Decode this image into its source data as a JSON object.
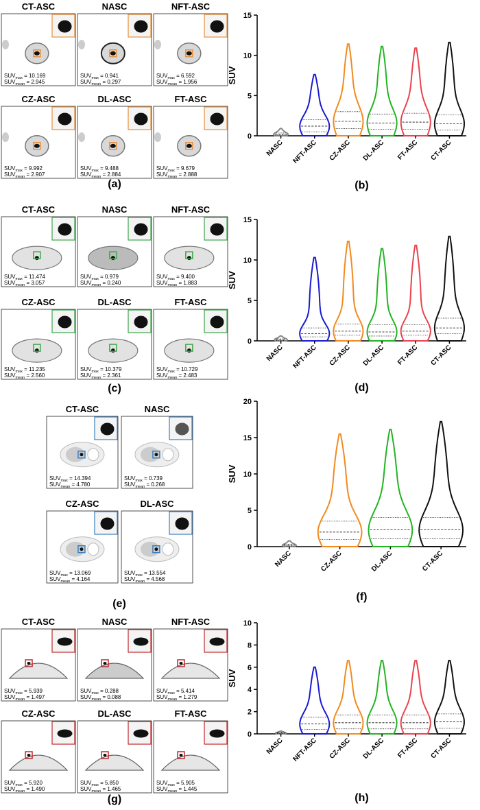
{
  "labels": {
    "suv": "SUV",
    "max": "max",
    "mean": "mean",
    "equals": " = "
  },
  "image_groups": [
    {
      "label": "(a)",
      "panels": [
        {
          "title": "CT-ASC",
          "suv_max": "10.169",
          "suv_mean": "2.945"
        },
        {
          "title": "NASC",
          "suv_max": "0.941",
          "suv_mean": "0.297"
        },
        {
          "title": "NFT-ASC",
          "suv_max": "6.592",
          "suv_mean": "1.956"
        },
        {
          "title": "CZ-ASC",
          "suv_max": "9.992",
          "suv_mean": "2.907"
        },
        {
          "title": "DL-ASC",
          "suv_max": "9.488",
          "suv_mean": "2.884"
        },
        {
          "title": "FT-ASC",
          "suv_max": "9.679",
          "suv_mean": "2.888"
        }
      ]
    },
    {
      "label": "(c)",
      "panels": [
        {
          "title": "CT-ASC",
          "suv_max": "11.474",
          "suv_mean": "3.057"
        },
        {
          "title": "NASC",
          "suv_max": "0.979",
          "suv_mean": "0.240"
        },
        {
          "title": "NFT-ASC",
          "suv_max": "9.400",
          "suv_mean": "1.883"
        },
        {
          "title": "CZ-ASC",
          "suv_max": "11.235",
          "suv_mean": "2.560"
        },
        {
          "title": "DL-ASC",
          "suv_max": "10.379",
          "suv_mean": "2.361"
        },
        {
          "title": "FT-ASC",
          "suv_max": "10.729",
          "suv_mean": "2.483"
        }
      ]
    },
    {
      "label": "(e)",
      "panels": [
        {
          "title": "CT-ASC",
          "suv_max": "14.394",
          "suv_mean": "4.780"
        },
        {
          "title": "NASC",
          "suv_max": "0.739",
          "suv_mean": "0.268"
        },
        {
          "title": "CZ-ASC",
          "suv_max": "13.069",
          "suv_mean": "4.164"
        },
        {
          "title": "DL-ASC",
          "suv_max": "13.554",
          "suv_mean": "4.568"
        }
      ]
    },
    {
      "label": "(g)",
      "panels": [
        {
          "title": "CT-ASC",
          "suv_max": "5.939",
          "suv_mean": "1.497"
        },
        {
          "title": "NASC",
          "suv_max": "0.288",
          "suv_mean": "0.088"
        },
        {
          "title": "NFT-ASC",
          "suv_max": "5.414",
          "suv_mean": "1.279"
        },
        {
          "title": "CZ-ASC",
          "suv_max": "5.920",
          "suv_mean": "1.490"
        },
        {
          "title": "DL-ASC",
          "suv_max": "5.850",
          "suv_mean": "1.465"
        },
        {
          "title": "FT-ASC",
          "suv_max": "5.905",
          "suv_mean": "1.445"
        }
      ]
    }
  ],
  "chart_data": [
    {
      "type": "violin",
      "label": "(b)",
      "ylabel": "SUV",
      "categories": [
        "NASC",
        "NFT-ASC",
        "CZ-ASC",
        "DL-ASC",
        "FT-ASC",
        "CT-ASC"
      ],
      "colors": [
        "#888888",
        "#1a1ad0",
        "#f28a1e",
        "#22b422",
        "#e8434e",
        "#111111"
      ],
      "max": [
        0.9,
        7.6,
        11.4,
        11.1,
        10.9,
        11.6
      ],
      "q3": [
        0.35,
        2.0,
        3.0,
        2.7,
        2.8,
        2.6
      ],
      "median": [
        0.2,
        1.2,
        1.8,
        1.6,
        1.7,
        1.5
      ],
      "q1": [
        0.1,
        0.5,
        0.9,
        0.8,
        0.8,
        0.7
      ],
      "ylim": [
        0,
        15
      ],
      "yticks": [
        0,
        5,
        10,
        15
      ]
    },
    {
      "type": "violin",
      "label": "(d)",
      "ylabel": "SUV",
      "categories": [
        "NASC",
        "NFT-ASC",
        "CZ-ASC",
        "DL-ASC",
        "FT-ASC",
        "CT-ASC"
      ],
      "colors": [
        "#888888",
        "#1a1ad0",
        "#f28a1e",
        "#22b422",
        "#e8434e",
        "#111111"
      ],
      "max": [
        0.6,
        10.3,
        12.3,
        11.4,
        11.8,
        12.9
      ],
      "q3": [
        0.25,
        1.6,
        2.1,
        2.0,
        2.0,
        2.8
      ],
      "median": [
        0.15,
        0.9,
        1.2,
        1.1,
        1.2,
        1.6
      ],
      "q1": [
        0.05,
        0.5,
        0.7,
        0.6,
        0.7,
        0.9
      ],
      "ylim": [
        0,
        15
      ],
      "yticks": [
        0,
        5,
        10,
        15
      ]
    },
    {
      "type": "violin",
      "label": "(f)",
      "ylabel": "SUV",
      "categories": [
        "NASC",
        "CZ-ASC",
        "DL-ASC",
        "CT-ASC"
      ],
      "colors": [
        "#888888",
        "#f28a1e",
        "#22b422",
        "#111111"
      ],
      "max": [
        0.8,
        15.5,
        16.1,
        17.2
      ],
      "q3": [
        0.3,
        3.5,
        4.0,
        4.0
      ],
      "median": [
        0.2,
        2.0,
        2.3,
        2.3
      ],
      "q1": [
        0.1,
        1.0,
        1.1,
        1.1
      ],
      "ylim": [
        0,
        20
      ],
      "yticks": [
        0,
        5,
        10,
        15,
        20
      ]
    },
    {
      "type": "violin",
      "label": "(h)",
      "ylabel": "SUV",
      "categories": [
        "NASC",
        "NFT-ASC",
        "CZ-ASC",
        "DL-ASC",
        "FT-ASC",
        "CT-ASC"
      ],
      "colors": [
        "#888888",
        "#1a1ad0",
        "#f28a1e",
        "#22b422",
        "#e8434e",
        "#111111"
      ],
      "max": [
        0.25,
        6.0,
        6.6,
        6.6,
        6.6,
        6.6
      ],
      "q3": [
        0.12,
        1.5,
        1.7,
        1.7,
        1.7,
        1.8
      ],
      "median": [
        0.08,
        0.9,
        1.0,
        1.0,
        1.0,
        1.1
      ],
      "q1": [
        0.04,
        0.4,
        0.45,
        0.45,
        0.45,
        0.5
      ],
      "ylim": [
        0,
        10
      ],
      "yticks": [
        0,
        2,
        4,
        6,
        8,
        10
      ]
    }
  ]
}
